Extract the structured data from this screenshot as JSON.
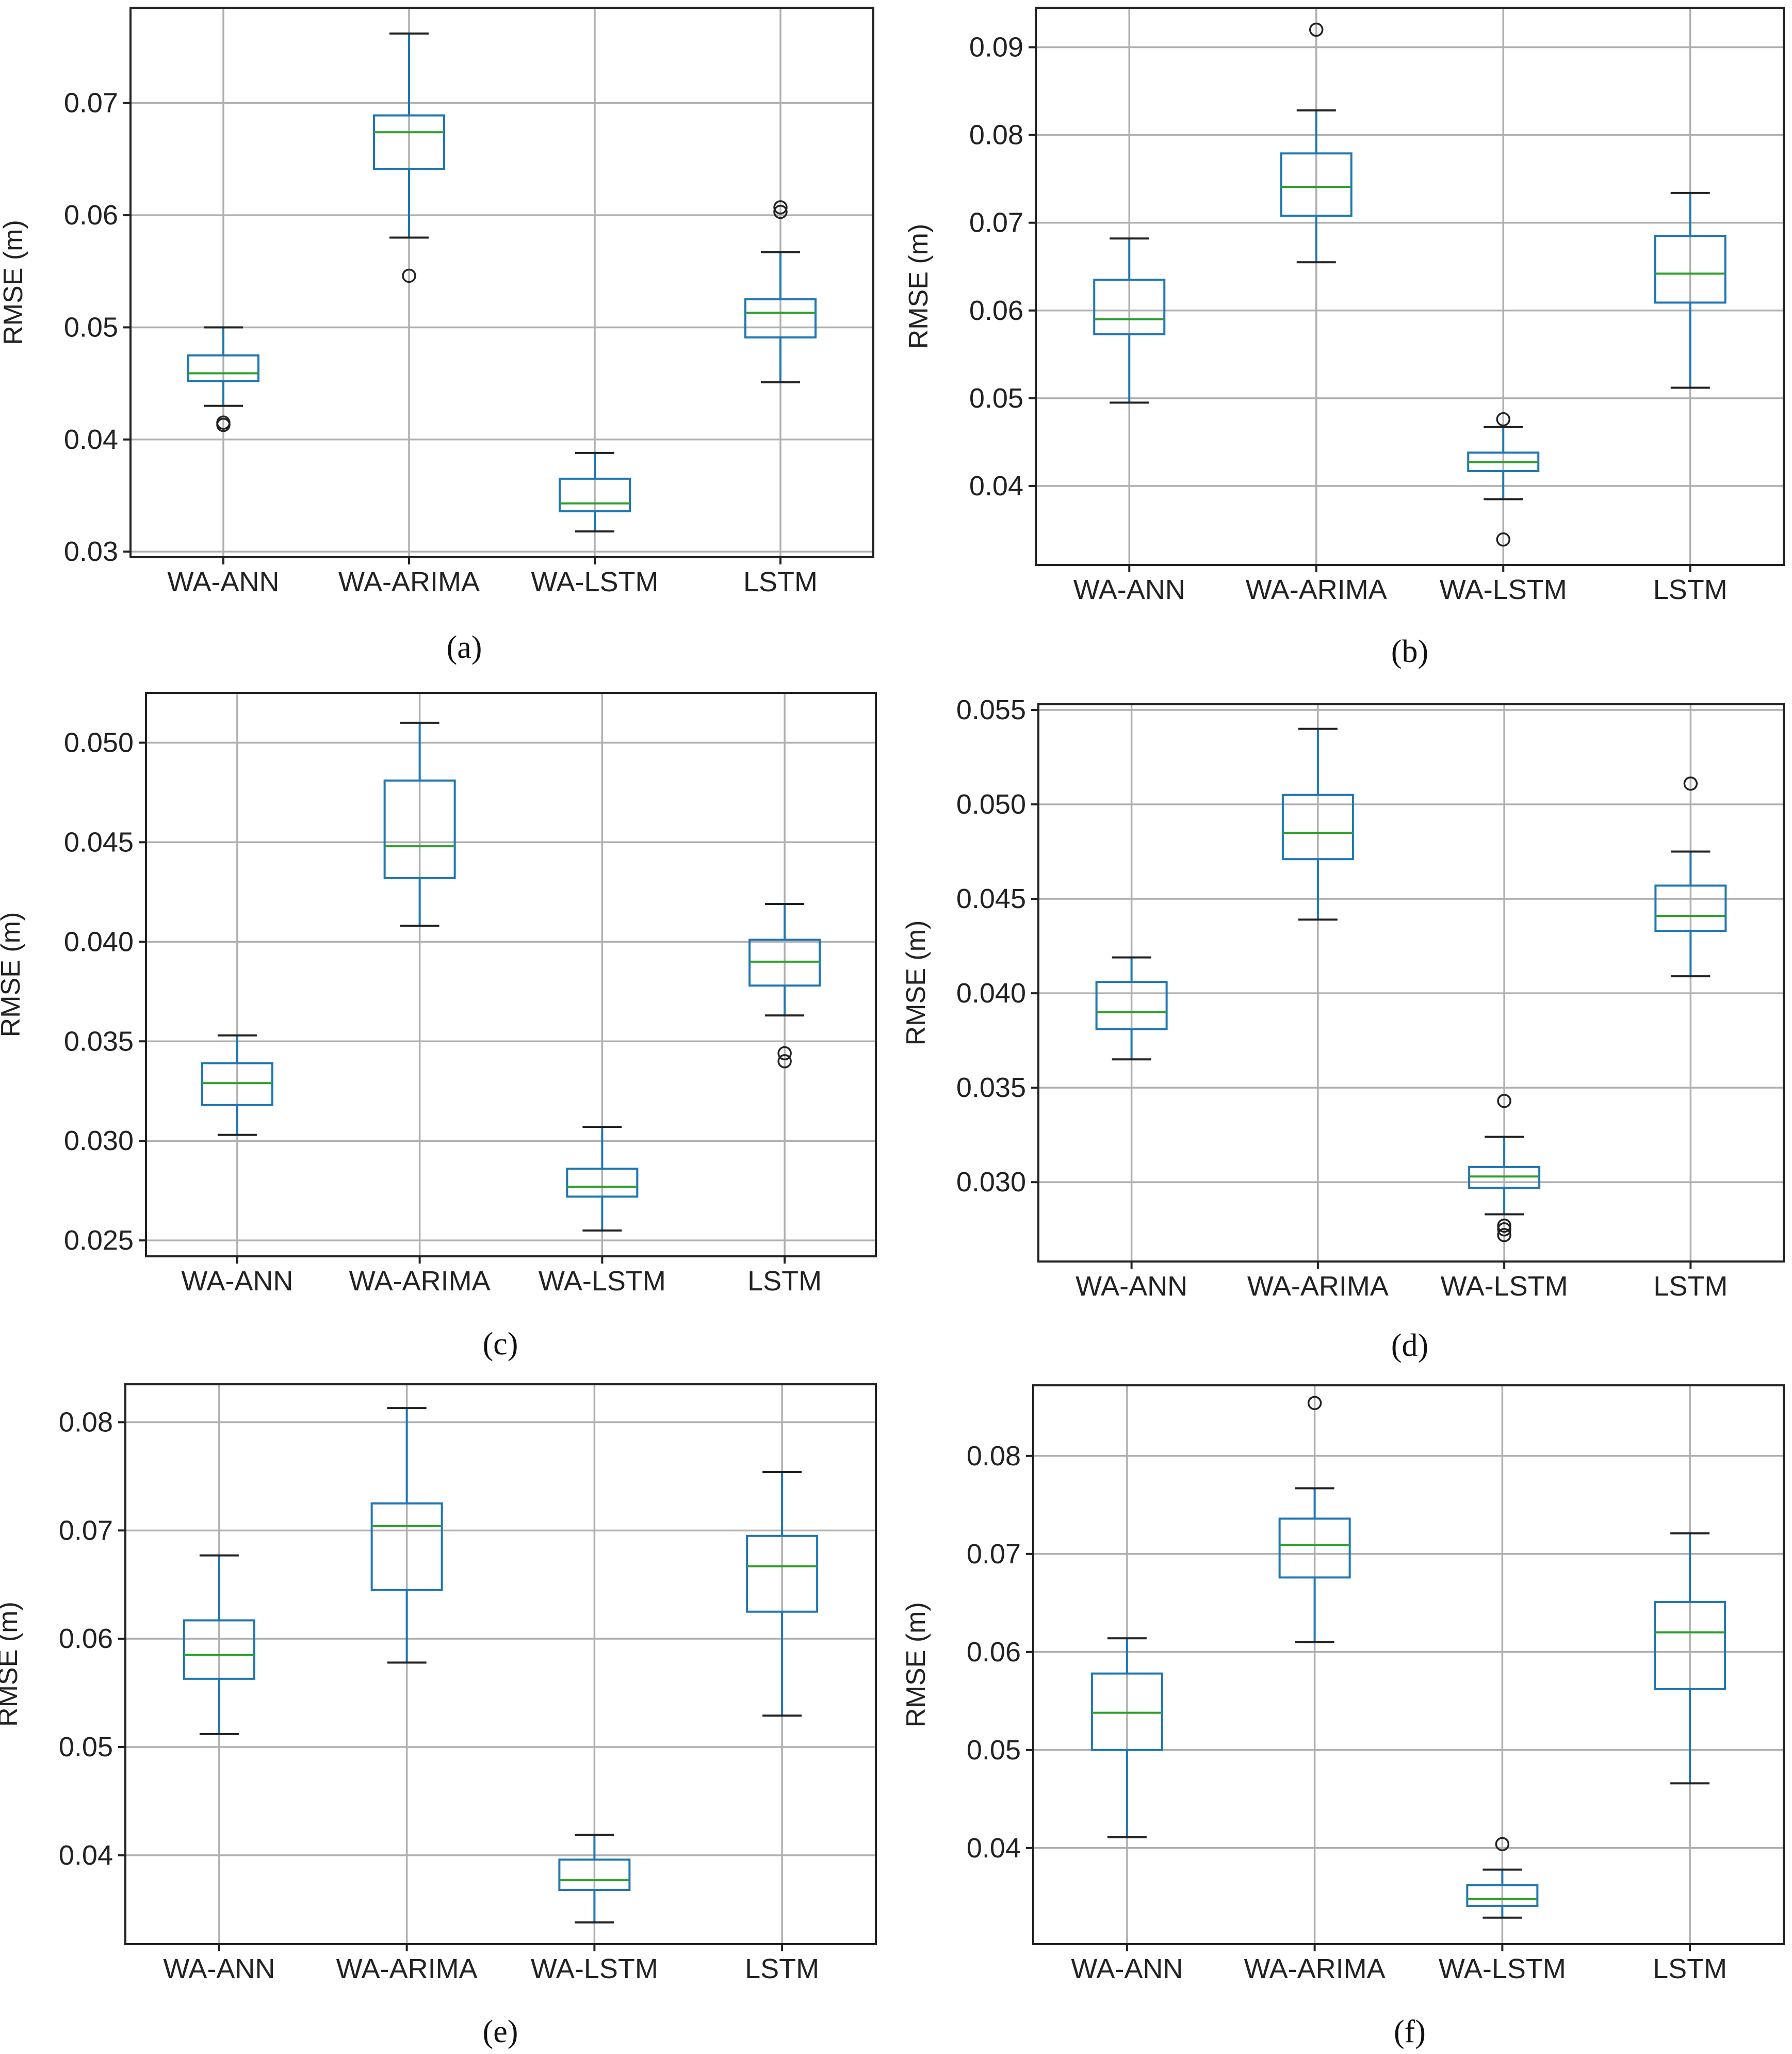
{
  "figure": {
    "y_axis_label": "RMSE (m)"
  },
  "colors": {
    "box": "#1f77b4",
    "median": "#2ca02c",
    "whisker": "#1f77b4",
    "cap": "#222222",
    "flier": "#222222",
    "grid": "#b0b0b0",
    "frame": "#222222"
  },
  "chart_data": [
    {
      "panel": "(a)",
      "type": "box",
      "categories": [
        "WA-ANN",
        "WA-ARIMA",
        "WA-LSTM",
        "LSTM"
      ],
      "ylabel": "RMSE (m)",
      "ylim": [
        0.0295,
        0.0785
      ],
      "yticks": [
        0.03,
        0.04,
        0.05,
        0.06,
        0.07
      ],
      "ytick_labels": [
        "0.03",
        "0.04",
        "0.05",
        "0.06",
        "0.07"
      ],
      "boxes": [
        {
          "whislo": 0.043,
          "q1": 0.0452,
          "med": 0.0459,
          "q3": 0.0475,
          "whishi": 0.05,
          "fliers": [
            0.0413,
            0.0415
          ]
        },
        {
          "whislo": 0.058,
          "q1": 0.0641,
          "med": 0.0674,
          "q3": 0.0689,
          "whishi": 0.0762,
          "fliers": [
            0.0546
          ]
        },
        {
          "whislo": 0.0318,
          "q1": 0.0336,
          "med": 0.0343,
          "q3": 0.0365,
          "whishi": 0.0388,
          "fliers": []
        },
        {
          "whislo": 0.0451,
          "q1": 0.0491,
          "med": 0.0513,
          "q3": 0.0525,
          "whishi": 0.0567,
          "fliers": [
            0.0603,
            0.0607
          ]
        }
      ]
    },
    {
      "panel": "(b)",
      "type": "box",
      "categories": [
        "WA-ANN",
        "WA-ARIMA",
        "WA-LSTM",
        "LSTM"
      ],
      "ylabel": "RMSE (m)",
      "ylim": [
        0.031,
        0.0945
      ],
      "yticks": [
        0.04,
        0.05,
        0.06,
        0.07,
        0.08,
        0.09
      ],
      "ytick_labels": [
        "0.04",
        "0.05",
        "0.06",
        "0.07",
        "0.08",
        "0.09"
      ],
      "boxes": [
        {
          "whislo": 0.0495,
          "q1": 0.0573,
          "med": 0.059,
          "q3": 0.0635,
          "whishi": 0.0682,
          "fliers": []
        },
        {
          "whislo": 0.0655,
          "q1": 0.0708,
          "med": 0.0741,
          "q3": 0.0779,
          "whishi": 0.0828,
          "fliers": [
            0.092
          ]
        },
        {
          "whislo": 0.0385,
          "q1": 0.0417,
          "med": 0.0427,
          "q3": 0.0438,
          "whishi": 0.0467,
          "fliers": [
            0.0476,
            0.0339
          ]
        },
        {
          "whislo": 0.0512,
          "q1": 0.0609,
          "med": 0.0642,
          "q3": 0.0685,
          "whishi": 0.0734,
          "fliers": []
        }
      ]
    },
    {
      "panel": "(c)",
      "type": "box",
      "categories": [
        "WA-ANN",
        "WA-ARIMA",
        "WA-LSTM",
        "LSTM"
      ],
      "ylabel": "RMSE (m)",
      "ylim": [
        0.0242,
        0.0525
      ],
      "yticks": [
        0.025,
        0.03,
        0.035,
        0.04,
        0.045,
        0.05
      ],
      "ytick_labels": [
        "0.025",
        "0.030",
        "0.035",
        "0.040",
        "0.045",
        "0.050"
      ],
      "boxes": [
        {
          "whislo": 0.0303,
          "q1": 0.0318,
          "med": 0.0329,
          "q3": 0.0339,
          "whishi": 0.0353,
          "fliers": []
        },
        {
          "whislo": 0.0408,
          "q1": 0.0432,
          "med": 0.0448,
          "q3": 0.0481,
          "whishi": 0.051,
          "fliers": []
        },
        {
          "whislo": 0.0255,
          "q1": 0.0272,
          "med": 0.0277,
          "q3": 0.0286,
          "whishi": 0.0307,
          "fliers": []
        },
        {
          "whislo": 0.0363,
          "q1": 0.0378,
          "med": 0.039,
          "q3": 0.0401,
          "whishi": 0.0419,
          "fliers": [
            0.0344,
            0.034
          ]
        }
      ]
    },
    {
      "panel": "(d)",
      "type": "box",
      "categories": [
        "WA-ANN",
        "WA-ARIMA",
        "WA-LSTM",
        "LSTM"
      ],
      "ylabel": "RMSE (m)",
      "ylim": [
        0.0258,
        0.0553
      ],
      "yticks": [
        0.03,
        0.035,
        0.04,
        0.045,
        0.05,
        0.055
      ],
      "ytick_labels": [
        "0.030",
        "0.035",
        "0.040",
        "0.045",
        "0.050",
        "0.055"
      ],
      "boxes": [
        {
          "whislo": 0.0365,
          "q1": 0.0381,
          "med": 0.039,
          "q3": 0.0406,
          "whishi": 0.0419,
          "fliers": []
        },
        {
          "whislo": 0.0439,
          "q1": 0.0471,
          "med": 0.0485,
          "q3": 0.0505,
          "whishi": 0.054,
          "fliers": []
        },
        {
          "whislo": 0.0283,
          "q1": 0.0297,
          "med": 0.0303,
          "q3": 0.0308,
          "whishi": 0.0324,
          "fliers": [
            0.0343,
            0.0277,
            0.0275,
            0.0272
          ]
        },
        {
          "whislo": 0.0409,
          "q1": 0.0433,
          "med": 0.0441,
          "q3": 0.0457,
          "whishi": 0.0475,
          "fliers": [
            0.0511
          ]
        }
      ]
    },
    {
      "panel": "(e)",
      "type": "box",
      "categories": [
        "WA-ANN",
        "WA-ARIMA",
        "WA-LSTM",
        "LSTM"
      ],
      "ylabel": "RMSE (m)",
      "ylim": [
        0.0318,
        0.0835
      ],
      "yticks": [
        0.04,
        0.05,
        0.06,
        0.07,
        0.08
      ],
      "ytick_labels": [
        "0.04",
        "0.05",
        "0.06",
        "0.07",
        "0.08"
      ],
      "boxes": [
        {
          "whislo": 0.0512,
          "q1": 0.0563,
          "med": 0.0585,
          "q3": 0.0617,
          "whishi": 0.0677,
          "fliers": []
        },
        {
          "whislo": 0.0578,
          "q1": 0.0645,
          "med": 0.0704,
          "q3": 0.0725,
          "whishi": 0.0813,
          "fliers": []
        },
        {
          "whislo": 0.0338,
          "q1": 0.0368,
          "med": 0.0377,
          "q3": 0.0396,
          "whishi": 0.0419,
          "fliers": []
        },
        {
          "whislo": 0.0529,
          "q1": 0.0625,
          "med": 0.0667,
          "q3": 0.0695,
          "whishi": 0.0754,
          "fliers": []
        }
      ]
    },
    {
      "panel": "(f)",
      "type": "box",
      "categories": [
        "WA-ANN",
        "WA-ARIMA",
        "WA-LSTM",
        "LSTM"
      ],
      "ylabel": "RMSE (m)",
      "ylim": [
        0.0302,
        0.0872
      ],
      "yticks": [
        0.04,
        0.05,
        0.06,
        0.07,
        0.08
      ],
      "ytick_labels": [
        "0.04",
        "0.05",
        "0.06",
        "0.07",
        "0.08"
      ],
      "boxes": [
        {
          "whislo": 0.0411,
          "q1": 0.05,
          "med": 0.0538,
          "q3": 0.0578,
          "whishi": 0.0614,
          "fliers": []
        },
        {
          "whislo": 0.061,
          "q1": 0.0676,
          "med": 0.0709,
          "q3": 0.0736,
          "whishi": 0.0767,
          "fliers": [
            0.0854
          ]
        },
        {
          "whislo": 0.0329,
          "q1": 0.0341,
          "med": 0.0348,
          "q3": 0.0362,
          "whishi": 0.0378,
          "fliers": [
            0.0404
          ]
        },
        {
          "whislo": 0.0466,
          "q1": 0.0562,
          "med": 0.062,
          "q3": 0.0651,
          "whishi": 0.0721,
          "fliers": []
        }
      ]
    }
  ]
}
